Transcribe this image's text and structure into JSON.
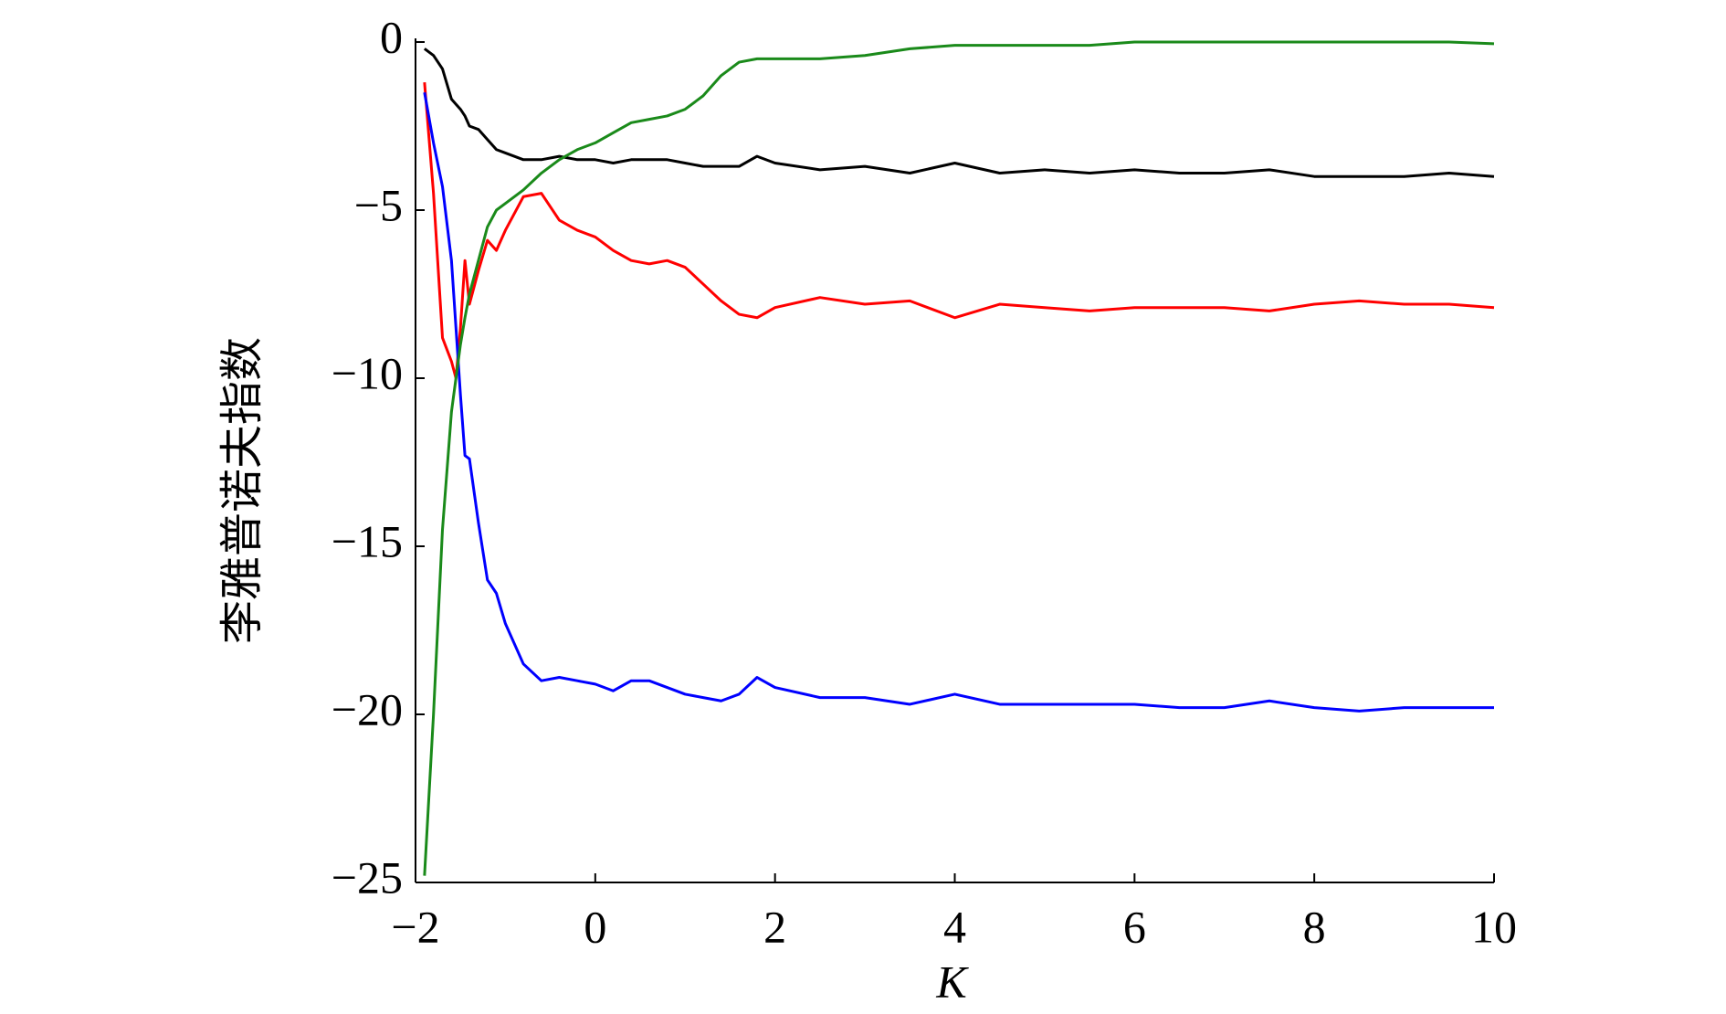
{
  "chart_data": {
    "type": "line",
    "x_label": "K",
    "y_label": "李雅普诺夫指数",
    "x": [
      -1.9,
      -1.8,
      -1.7,
      -1.6,
      -1.55,
      -1.5,
      -1.45,
      -1.4,
      -1.3,
      -1.2,
      -1.1,
      -1.0,
      -0.8,
      -0.6,
      -0.4,
      -0.2,
      0,
      0.2,
      0.4,
      0.6,
      0.8,
      1.0,
      1.2,
      1.4,
      1.6,
      1.8,
      2.0,
      2.5,
      3,
      3.5,
      4,
      4.5,
      5,
      5.5,
      6,
      6.5,
      7,
      7.5,
      8,
      8.5,
      9,
      9.5,
      10
    ],
    "series": [
      {
        "color": "#000000",
        "values": [
          -0.2,
          -0.4,
          -0.8,
          -1.7,
          -1.85,
          -2.0,
          -2.2,
          -2.5,
          -2.6,
          -2.9,
          -3.2,
          -3.3,
          -3.5,
          -3.5,
          -3.4,
          -3.5,
          -3.5,
          -3.6,
          -3.5,
          -3.5,
          -3.5,
          -3.6,
          -3.7,
          -3.7,
          -3.7,
          -3.4,
          -3.6,
          -3.8,
          -3.7,
          -3.9,
          -3.6,
          -3.9,
          -3.8,
          -3.9,
          -3.8,
          -3.9,
          -3.9,
          -3.8,
          -4.0,
          -4.0,
          -4.0,
          -3.9,
          -4.0
        ]
      },
      {
        "color": "#ff0000",
        "values": [
          -1.2,
          -4.5,
          -8.8,
          -9.5,
          -10.0,
          -8.5,
          -6.5,
          -7.8,
          -6.8,
          -5.9,
          -6.2,
          -5.6,
          -4.6,
          -4.5,
          -5.3,
          -5.6,
          -5.8,
          -6.2,
          -6.5,
          -6.6,
          -6.5,
          -6.7,
          -7.2,
          -7.7,
          -8.1,
          -8.2,
          -7.9,
          -7.6,
          -7.8,
          -7.7,
          -8.2,
          -7.8,
          -7.9,
          -8.0,
          -7.9,
          -7.9,
          -7.9,
          -8.0,
          -7.8,
          -7.7,
          -7.8,
          -7.8,
          -7.9
        ]
      },
      {
        "color": "#0000ff",
        "values": [
          -1.5,
          -3.0,
          -4.3,
          -6.5,
          -8.5,
          -10.5,
          -12.3,
          -12.4,
          -14.3,
          -16.0,
          -16.4,
          -17.3,
          -18.5,
          -19.0,
          -18.9,
          -19.0,
          -19.1,
          -19.3,
          -19.0,
          -19.0,
          -19.2,
          -19.4,
          -19.5,
          -19.6,
          -19.4,
          -18.9,
          -19.2,
          -19.5,
          -19.5,
          -19.7,
          -19.4,
          -19.7,
          -19.7,
          -19.7,
          -19.7,
          -19.8,
          -19.8,
          -19.6,
          -19.8,
          -19.9,
          -19.8,
          -19.8,
          -19.8
        ]
      },
      {
        "color": "#1a8a1a",
        "values": [
          -24.8,
          -20,
          -14.5,
          -11,
          -10,
          -9,
          -8.2,
          -7.5,
          -6.5,
          -5.5,
          -5.0,
          -4.8,
          -4.4,
          -3.9,
          -3.5,
          -3.2,
          -3.0,
          -2.7,
          -2.4,
          -2.3,
          -2.2,
          -2.0,
          -1.6,
          -1.0,
          -0.6,
          -0.5,
          -0.5,
          -0.5,
          -0.4,
          -0.2,
          -0.1,
          -0.1,
          -0.1,
          -0.1,
          0,
          0,
          0,
          0,
          0,
          0,
          0,
          0,
          -0.05
        ]
      }
    ],
    "xlim": [
      -2,
      10
    ],
    "xticks": [
      {
        "value": -2,
        "label": "−2"
      },
      0,
      2,
      4,
      6,
      8,
      10
    ],
    "ylim": [
      -25,
      0
    ],
    "yticks": [
      {
        "value": -25,
        "label": "−25"
      },
      {
        "value": -20,
        "label": "−20"
      },
      {
        "value": -15,
        "label": "−15"
      },
      {
        "value": -10,
        "label": "−10"
      },
      {
        "value": -5,
        "label": "−5"
      },
      0
    ]
  }
}
